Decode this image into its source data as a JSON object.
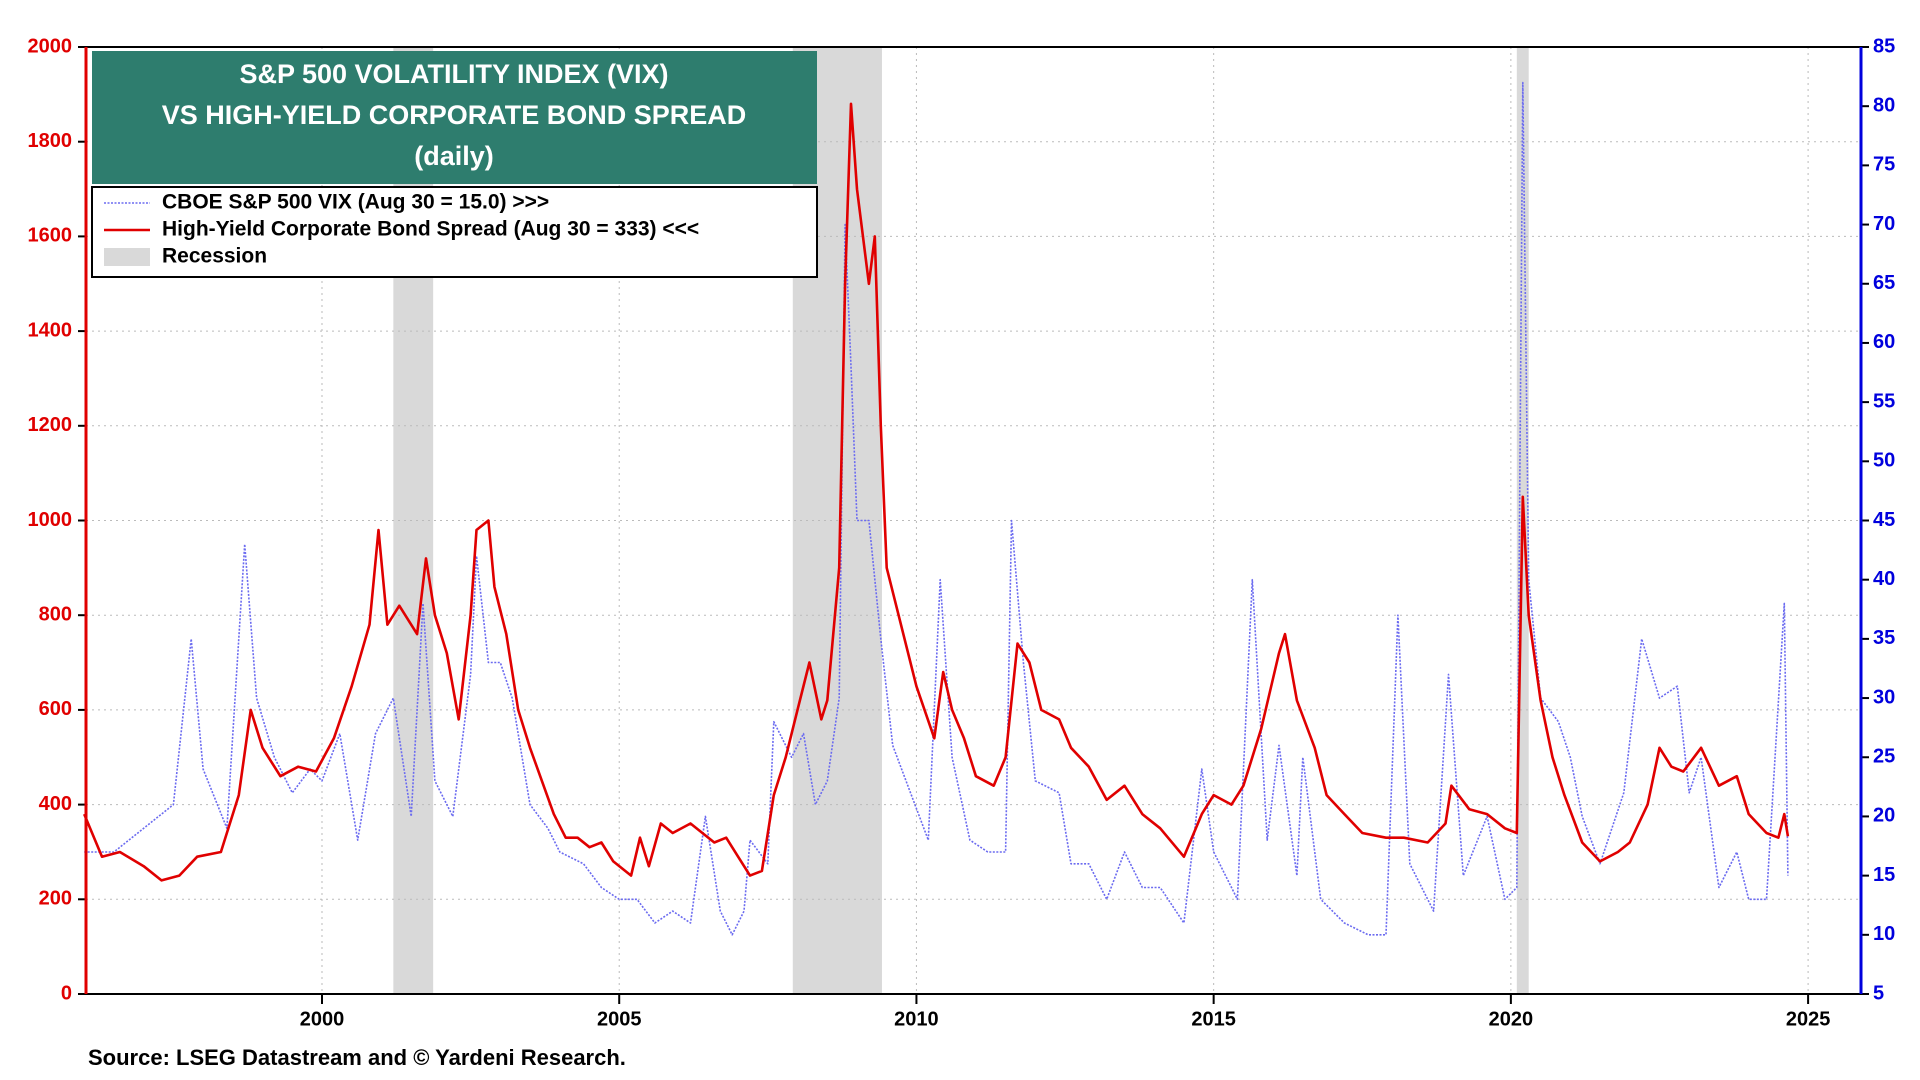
{
  "chart_data": {
    "type": "line",
    "title_lines": [
      "S&P 500 VOLATILITY INDEX (VIX)",
      "VS HIGH-YIELD CORPORATE BOND SPREAD",
      "(daily)"
    ],
    "source": "Source: LSEG Datastream and © Yardeni Research.",
    "xlim": [
      1996.03,
      2025.89
    ],
    "xticks": [
      2000,
      2005,
      2010,
      2015,
      2020,
      2025
    ],
    "ylim": [
      0,
      2000
    ],
    "yticks": [
      0,
      200,
      400,
      600,
      800,
      1000,
      1200,
      1400,
      1600,
      1800,
      2000
    ],
    "y2lim": [
      5,
      85
    ],
    "y2ticks": [
      5,
      10,
      15,
      20,
      25,
      30,
      35,
      40,
      45,
      50,
      55,
      60,
      65,
      70,
      75,
      80,
      85
    ],
    "grid": true,
    "y_color": "#e00000",
    "y2_color": "#0000dd",
    "recession_label": "Recession",
    "recession_color": "#d9d9d9",
    "recessions": [
      [
        2001.2,
        2001.87
      ],
      [
        2007.92,
        2009.42
      ],
      [
        2020.1,
        2020.3
      ]
    ],
    "series": [
      {
        "name": "CBOE S&P 500 VIX (Aug 30 = 15.0) >>>",
        "color": "#6b6bf0",
        "axis": "y2",
        "dashed": true,
        "x": [
          1996.0,
          1996.5,
          1997.0,
          1997.5,
          1997.8,
          1998.0,
          1998.4,
          1998.7,
          1998.9,
          1999.2,
          1999.5,
          1999.8,
          2000.0,
          2000.3,
          2000.6,
          2000.9,
          2001.2,
          2001.5,
          2001.7,
          2001.9,
          2002.2,
          2002.5,
          2002.6,
          2002.8,
          2003.0,
          2003.2,
          2003.5,
          2003.8,
          2004.0,
          2004.4,
          2004.7,
          2005.0,
          2005.3,
          2005.6,
          2005.9,
          2006.2,
          2006.45,
          2006.7,
          2006.9,
          2007.1,
          2007.2,
          2007.5,
          2007.6,
          2007.9,
          2008.1,
          2008.3,
          2008.5,
          2008.7,
          2008.8,
          2008.9,
          2009.0,
          2009.2,
          2009.4,
          2009.6,
          2009.9,
          2010.2,
          2010.4,
          2010.6,
          2010.9,
          2011.2,
          2011.5,
          2011.6,
          2011.8,
          2012.0,
          2012.4,
          2012.6,
          2012.9,
          2013.2,
          2013.5,
          2013.8,
          2014.1,
          2014.5,
          2014.8,
          2015.0,
          2015.4,
          2015.65,
          2015.9,
          2016.1,
          2016.4,
          2016.5,
          2016.8,
          2017.2,
          2017.6,
          2017.9,
          2018.1,
          2018.3,
          2018.7,
          2018.95,
          2019.2,
          2019.6,
          2019.9,
          2020.1,
          2020.2,
          2020.3,
          2020.5,
          2020.8,
          2021.0,
          2021.2,
          2021.5,
          2021.9,
          2022.2,
          2022.5,
          2022.8,
          2023.0,
          2023.2,
          2023.5,
          2023.8,
          2024.0,
          2024.3,
          2024.6,
          2024.66
        ],
        "values": [
          17,
          17,
          19,
          21,
          35,
          24,
          19,
          43,
          30,
          25,
          22,
          24,
          23,
          27,
          18,
          27,
          30,
          20,
          38,
          23,
          20,
          32,
          42,
          33,
          33,
          30,
          21,
          19,
          17,
          16,
          14,
          13,
          13,
          11,
          12,
          11,
          20,
          12,
          10,
          12,
          18,
          16,
          28,
          25,
          27,
          21,
          23,
          30,
          70,
          58,
          45,
          45,
          35,
          26,
          22,
          18,
          40,
          25,
          18,
          17,
          17,
          45,
          33,
          23,
          22,
          16,
          16,
          13,
          17,
          14,
          14,
          11,
          24,
          17,
          13,
          40,
          18,
          26,
          15,
          25,
          13,
          11,
          10,
          10,
          37,
          16,
          12,
          32,
          15,
          20,
          13,
          14,
          82,
          40,
          30,
          28,
          25,
          20,
          16,
          22,
          35,
          30,
          31,
          22,
          25,
          14,
          17,
          13,
          13,
          38,
          15
        ]
      },
      {
        "name": "High-Yield Corporate Bond Spread (Aug 30 = 333) <<<",
        "color": "#e00000",
        "axis": "y",
        "x": [
          1996.0,
          1996.3,
          1996.6,
          1997.0,
          1997.3,
          1997.6,
          1997.9,
          1998.3,
          1998.6,
          1998.8,
          1999.0,
          1999.3,
          1999.6,
          1999.9,
          2000.2,
          2000.5,
          2000.8,
          2000.95,
          2001.1,
          2001.3,
          2001.6,
          2001.75,
          2001.9,
          2002.1,
          2002.3,
          2002.5,
          2002.6,
          2002.8,
          2002.9,
          2003.1,
          2003.3,
          2003.5,
          2003.7,
          2003.9,
          2004.1,
          2004.3,
          2004.5,
          2004.7,
          2004.9,
          2005.2,
          2005.35,
          2005.5,
          2005.7,
          2005.9,
          2006.2,
          2006.4,
          2006.6,
          2006.8,
          2007.0,
          2007.2,
          2007.4,
          2007.6,
          2007.8,
          2008.0,
          2008.2,
          2008.4,
          2008.5,
          2008.7,
          2008.8,
          2008.9,
          2009.0,
          2009.2,
          2009.3,
          2009.4,
          2009.5,
          2009.7,
          2010.0,
          2010.3,
          2010.45,
          2010.6,
          2010.8,
          2011.0,
          2011.3,
          2011.5,
          2011.7,
          2011.9,
          2012.1,
          2012.4,
          2012.6,
          2012.9,
          2013.2,
          2013.5,
          2013.8,
          2014.1,
          2014.5,
          2014.8,
          2015.0,
          2015.3,
          2015.5,
          2015.8,
          2016.1,
          2016.2,
          2016.4,
          2016.7,
          2016.9,
          2017.2,
          2017.5,
          2017.9,
          2018.2,
          2018.6,
          2018.9,
          2019.0,
          2019.3,
          2019.6,
          2019.9,
          2020.1,
          2020.2,
          2020.3,
          2020.5,
          2020.7,
          2020.9,
          2021.2,
          2021.5,
          2021.8,
          2022.0,
          2022.3,
          2022.5,
          2022.7,
          2022.9,
          2023.2,
          2023.5,
          2023.8,
          2024.0,
          2024.3,
          2024.5,
          2024.6,
          2024.66
        ],
        "values": [
          380,
          290,
          300,
          270,
          240,
          250,
          290,
          300,
          420,
          600,
          520,
          460,
          480,
          470,
          540,
          650,
          780,
          980,
          780,
          820,
          760,
          920,
          800,
          720,
          580,
          800,
          980,
          1000,
          860,
          760,
          600,
          520,
          450,
          380,
          330,
          330,
          310,
          320,
          280,
          250,
          330,
          270,
          360,
          340,
          360,
          340,
          320,
          330,
          290,
          250,
          260,
          420,
          500,
          600,
          700,
          580,
          620,
          900,
          1500,
          1880,
          1700,
          1500,
          1600,
          1200,
          900,
          800,
          650,
          540,
          680,
          600,
          540,
          460,
          440,
          500,
          740,
          700,
          600,
          580,
          520,
          480,
          410,
          440,
          380,
          350,
          290,
          380,
          420,
          400,
          440,
          560,
          720,
          760,
          620,
          520,
          420,
          380,
          340,
          330,
          330,
          320,
          360,
          440,
          390,
          380,
          350,
          340,
          1050,
          800,
          620,
          500,
          420,
          320,
          280,
          300,
          320,
          400,
          520,
          480,
          470,
          520,
          440,
          460,
          380,
          340,
          330,
          380,
          333
        ]
      }
    ]
  }
}
